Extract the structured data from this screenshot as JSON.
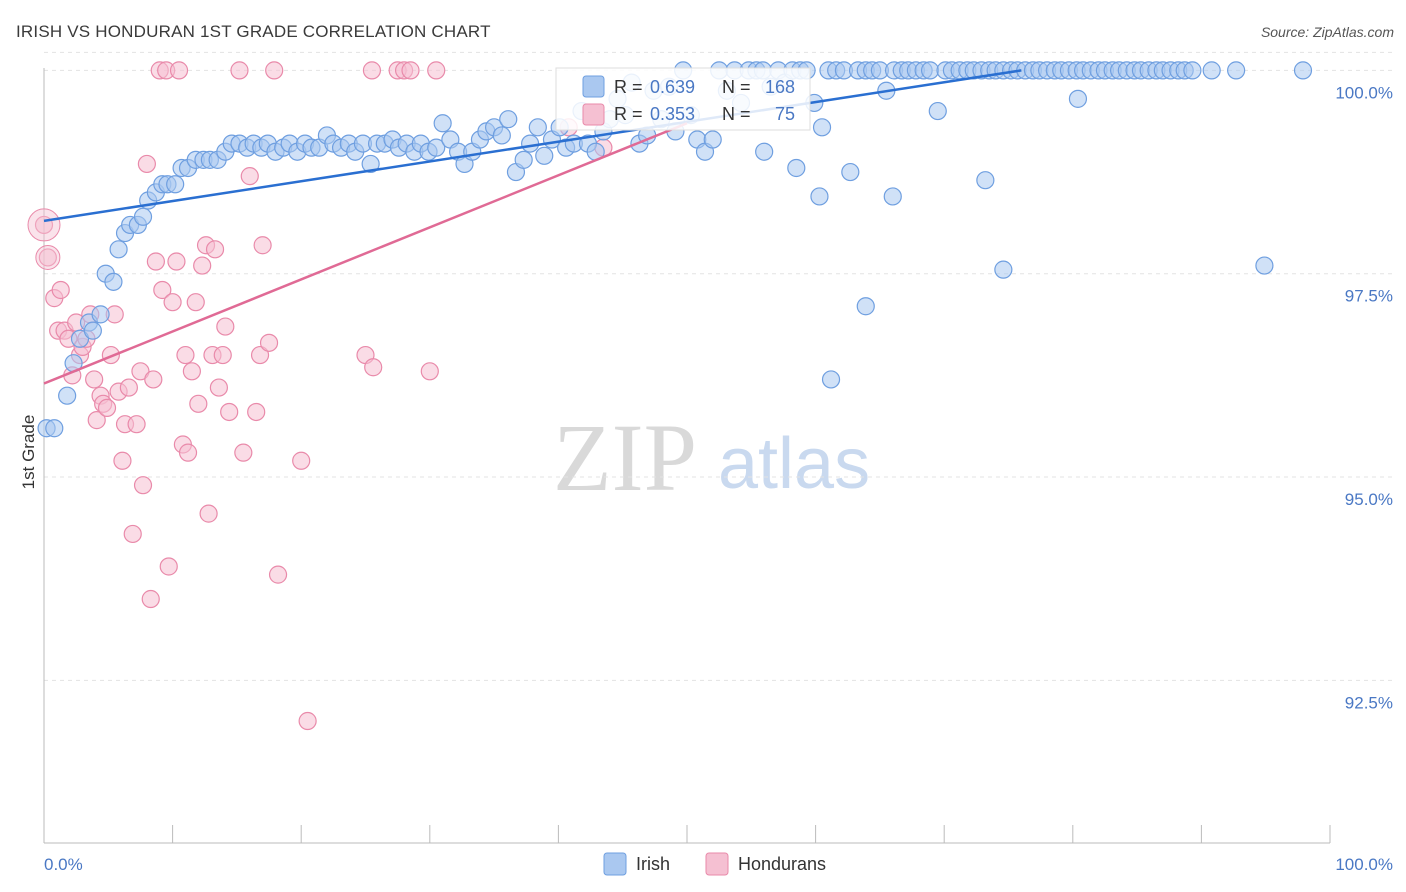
{
  "title": "IRISH VS HONDURAN 1ST GRADE CORRELATION CHART",
  "source": "Source: ZipAtlas.com",
  "watermark": {
    "part1": "ZIP",
    "part2": "atlas"
  },
  "colors": {
    "irish": "#6f9fe0",
    "irish_fill": "#aac8f0",
    "hondurans": "#e98aaa",
    "hondurans_fill": "#f5c0d2",
    "irish_line": "#2a6fd1",
    "hondurans_line": "#e06a95",
    "tick_text": "#4a78c4"
  },
  "stats": [
    {
      "series": "Irish",
      "r_label": "R =",
      "r": "0.639",
      "n_label": "N =",
      "n": "168"
    },
    {
      "series": "Hondurans",
      "r_label": "R =",
      "r": "0.353",
      "n_label": "N =",
      "n": "75"
    }
  ],
  "chart_data": {
    "type": "scatter",
    "title": "IRISH VS HONDURAN 1ST GRADE CORRELATION CHART",
    "xlabel": "",
    "ylabel": "1st Grade",
    "xlim": [
      0,
      100
    ],
    "ylim": [
      90.5,
      100.3
    ],
    "x_tick_labels": [
      "0.0%",
      "100.0%"
    ],
    "y_ticks": [
      92.5,
      95.0,
      97.5,
      100.0
    ],
    "y_tick_labels": [
      "92.5%",
      "95.0%",
      "97.5%",
      "100.0%"
    ],
    "grid": true,
    "legend": "bottom-center",
    "series": [
      {
        "name": "Irish",
        "trend": {
          "x": [
            0,
            76
          ],
          "y": [
            98.15,
            100.0
          ]
        },
        "points": [
          [
            0.2,
            95.6
          ],
          [
            0.8,
            95.6
          ],
          [
            1.8,
            96.0
          ],
          [
            2.3,
            96.4
          ],
          [
            2.8,
            96.7
          ],
          [
            3.5,
            96.9
          ],
          [
            3.8,
            96.8
          ],
          [
            4.4,
            97.0
          ],
          [
            4.8,
            97.5
          ],
          [
            5.4,
            97.4
          ],
          [
            5.8,
            97.8
          ],
          [
            6.3,
            98.0
          ],
          [
            6.7,
            98.1
          ],
          [
            7.3,
            98.1
          ],
          [
            7.7,
            98.2
          ],
          [
            8.1,
            98.4
          ],
          [
            8.7,
            98.5
          ],
          [
            9.2,
            98.6
          ],
          [
            9.6,
            98.6
          ],
          [
            10.2,
            98.6
          ],
          [
            10.7,
            98.8
          ],
          [
            11.2,
            98.8
          ],
          [
            11.8,
            98.9
          ],
          [
            12.4,
            98.9
          ],
          [
            12.9,
            98.9
          ],
          [
            13.5,
            98.9
          ],
          [
            14.1,
            99.0
          ],
          [
            14.6,
            99.1
          ],
          [
            15.2,
            99.1
          ],
          [
            15.8,
            99.05
          ],
          [
            16.3,
            99.1
          ],
          [
            16.9,
            99.05
          ],
          [
            17.4,
            99.1
          ],
          [
            18.0,
            99.0
          ],
          [
            18.6,
            99.05
          ],
          [
            19.1,
            99.1
          ],
          [
            19.7,
            99.0
          ],
          [
            20.3,
            99.1
          ],
          [
            20.8,
            99.05
          ],
          [
            21.4,
            99.05
          ],
          [
            22.0,
            99.2
          ],
          [
            22.5,
            99.1
          ],
          [
            23.1,
            99.05
          ],
          [
            23.7,
            99.1
          ],
          [
            24.2,
            99.0
          ],
          [
            24.8,
            99.1
          ],
          [
            25.4,
            98.85
          ],
          [
            25.9,
            99.1
          ],
          [
            26.5,
            99.1
          ],
          [
            27.1,
            99.15
          ],
          [
            27.6,
            99.05
          ],
          [
            28.2,
            99.1
          ],
          [
            28.8,
            99.0
          ],
          [
            29.3,
            99.1
          ],
          [
            29.9,
            99.0
          ],
          [
            30.5,
            99.05
          ],
          [
            31.0,
            99.35
          ],
          [
            31.6,
            99.15
          ],
          [
            32.2,
            99.0
          ],
          [
            32.7,
            98.85
          ],
          [
            33.3,
            99.0
          ],
          [
            33.9,
            99.15
          ],
          [
            34.4,
            99.25
          ],
          [
            35.0,
            99.3
          ],
          [
            35.6,
            99.2
          ],
          [
            36.1,
            99.4
          ],
          [
            36.7,
            98.75
          ],
          [
            37.3,
            98.9
          ],
          [
            37.8,
            99.1
          ],
          [
            38.4,
            99.3
          ],
          [
            38.9,
            98.95
          ],
          [
            39.5,
            99.15
          ],
          [
            40.1,
            99.3
          ],
          [
            40.6,
            99.05
          ],
          [
            41.2,
            99.1
          ],
          [
            41.8,
            99.5
          ],
          [
            42.3,
            99.1
          ],
          [
            42.9,
            99.0
          ],
          [
            43.5,
            99.25
          ],
          [
            44.0,
            99.4
          ],
          [
            44.6,
            99.65
          ],
          [
            45.2,
            99.45
          ],
          [
            45.7,
            99.85
          ],
          [
            46.3,
            99.1
          ],
          [
            46.9,
            99.2
          ],
          [
            47.4,
            99.75
          ],
          [
            48.0,
            99.4
          ],
          [
            48.6,
            99.8
          ],
          [
            49.1,
            99.25
          ],
          [
            49.7,
            100.0
          ],
          [
            50.3,
            99.45
          ],
          [
            50.8,
            99.15
          ],
          [
            51.4,
            99.0
          ],
          [
            52.0,
            99.15
          ],
          [
            52.5,
            100.0
          ],
          [
            53.1,
            99.75
          ],
          [
            53.7,
            100.0
          ],
          [
            54.2,
            99.6
          ],
          [
            54.8,
            100.0
          ],
          [
            55.4,
            100.0
          ],
          [
            55.9,
            100.0
          ],
          [
            56.5,
            99.8
          ],
          [
            57.1,
            100.0
          ],
          [
            57.6,
            99.85
          ],
          [
            58.2,
            100.0
          ],
          [
            58.8,
            100.0
          ],
          [
            59.3,
            100.0
          ],
          [
            59.9,
            99.6
          ],
          [
            60.5,
            99.3
          ],
          [
            61.0,
            100.0
          ],
          [
            61.6,
            100.0
          ],
          [
            62.2,
            100.0
          ],
          [
            62.7,
            98.75
          ],
          [
            63.3,
            100.0
          ],
          [
            63.9,
            100.0
          ],
          [
            64.4,
            100.0
          ],
          [
            65.0,
            100.0
          ],
          [
            65.5,
            99.75
          ],
          [
            66.1,
            100.0
          ],
          [
            66.7,
            100.0
          ],
          [
            67.2,
            100.0
          ],
          [
            67.8,
            100.0
          ],
          [
            68.4,
            100.0
          ],
          [
            68.9,
            100.0
          ],
          [
            69.5,
            99.5
          ],
          [
            70.1,
            100.0
          ],
          [
            70.6,
            100.0
          ],
          [
            71.2,
            100.0
          ],
          [
            71.8,
            100.0
          ],
          [
            72.3,
            100.0
          ],
          [
            72.9,
            100.0
          ],
          [
            73.5,
            100.0
          ],
          [
            74.0,
            100.0
          ],
          [
            74.6,
            100.0
          ],
          [
            75.2,
            100.0
          ],
          [
            75.7,
            100.0
          ],
          [
            76.3,
            100.0
          ],
          [
            76.9,
            100.0
          ],
          [
            77.4,
            100.0
          ],
          [
            78.0,
            100.0
          ],
          [
            78.6,
            100.0
          ],
          [
            79.1,
            100.0
          ],
          [
            79.7,
            100.0
          ],
          [
            80.3,
            100.0
          ],
          [
            80.8,
            100.0
          ],
          [
            81.4,
            100.0
          ],
          [
            82.0,
            100.0
          ],
          [
            82.5,
            100.0
          ],
          [
            83.1,
            100.0
          ],
          [
            83.6,
            100.0
          ],
          [
            84.2,
            100.0
          ],
          [
            84.8,
            100.0
          ],
          [
            85.3,
            100.0
          ],
          [
            85.9,
            100.0
          ],
          [
            86.5,
            100.0
          ],
          [
            87.0,
            100.0
          ],
          [
            87.6,
            100.0
          ],
          [
            88.2,
            100.0
          ],
          [
            88.7,
            100.0
          ],
          [
            89.3,
            100.0
          ],
          [
            90.8,
            100.0
          ],
          [
            92.7,
            100.0
          ],
          [
            97.9,
            100.0
          ],
          [
            56.0,
            99.0
          ],
          [
            58.5,
            98.8
          ],
          [
            60.3,
            98.45
          ],
          [
            61.2,
            96.2
          ],
          [
            63.9,
            97.1
          ],
          [
            66.0,
            98.45
          ],
          [
            73.2,
            98.65
          ],
          [
            74.6,
            97.55
          ],
          [
            80.4,
            99.65
          ],
          [
            94.9,
            97.6
          ]
        ]
      },
      {
        "name": "Hondurans",
        "trend": {
          "x": [
            0,
            50
          ],
          "y": [
            96.15,
            99.35
          ]
        },
        "points": [
          [
            0.0,
            98.1
          ],
          [
            0.3,
            97.7
          ],
          [
            0.8,
            97.2
          ],
          [
            1.1,
            96.8
          ],
          [
            1.3,
            97.3
          ],
          [
            1.6,
            96.8
          ],
          [
            1.9,
            96.7
          ],
          [
            2.2,
            96.25
          ],
          [
            2.5,
            96.9
          ],
          [
            2.8,
            96.5
          ],
          [
            3.0,
            96.6
          ],
          [
            3.3,
            96.7
          ],
          [
            3.6,
            97.0
          ],
          [
            3.9,
            96.2
          ],
          [
            4.1,
            95.7
          ],
          [
            4.4,
            96.0
          ],
          [
            4.6,
            95.9
          ],
          [
            4.9,
            95.85
          ],
          [
            5.2,
            96.5
          ],
          [
            5.5,
            97.0
          ],
          [
            5.8,
            96.05
          ],
          [
            6.1,
            95.2
          ],
          [
            6.3,
            95.65
          ],
          [
            6.6,
            96.1
          ],
          [
            6.9,
            94.3
          ],
          [
            7.2,
            95.65
          ],
          [
            7.5,
            96.3
          ],
          [
            7.7,
            94.9
          ],
          [
            8.0,
            98.85
          ],
          [
            8.3,
            93.5
          ],
          [
            8.5,
            96.2
          ],
          [
            8.7,
            97.65
          ],
          [
            9.0,
            100.0
          ],
          [
            9.2,
            97.3
          ],
          [
            9.5,
            100.0
          ],
          [
            9.7,
            93.9
          ],
          [
            10.0,
            97.15
          ],
          [
            10.3,
            97.65
          ],
          [
            10.5,
            100.0
          ],
          [
            10.8,
            95.4
          ],
          [
            11.0,
            96.5
          ],
          [
            11.2,
            95.3
          ],
          [
            11.5,
            96.3
          ],
          [
            11.8,
            97.15
          ],
          [
            12.0,
            95.9
          ],
          [
            12.3,
            97.6
          ],
          [
            12.6,
            97.85
          ],
          [
            12.8,
            94.55
          ],
          [
            13.1,
            96.5
          ],
          [
            13.3,
            97.8
          ],
          [
            13.6,
            96.1
          ],
          [
            13.9,
            96.5
          ],
          [
            14.1,
            96.85
          ],
          [
            14.4,
            95.8
          ],
          [
            15.2,
            100.0
          ],
          [
            15.5,
            95.3
          ],
          [
            16.0,
            98.7
          ],
          [
            16.5,
            95.8
          ],
          [
            16.8,
            96.5
          ],
          [
            17.0,
            97.85
          ],
          [
            17.5,
            96.65
          ],
          [
            17.9,
            100.0
          ],
          [
            18.2,
            93.8
          ],
          [
            20.0,
            95.2
          ],
          [
            20.5,
            92.0
          ],
          [
            25.0,
            96.5
          ],
          [
            25.6,
            96.35
          ],
          [
            25.5,
            100.0
          ],
          [
            27.5,
            100.0
          ],
          [
            28.0,
            100.0
          ],
          [
            28.5,
            100.0
          ],
          [
            30.0,
            96.3
          ],
          [
            30.5,
            100.0
          ],
          [
            40.8,
            99.3
          ],
          [
            43.5,
            99.05
          ]
        ]
      }
    ]
  }
}
